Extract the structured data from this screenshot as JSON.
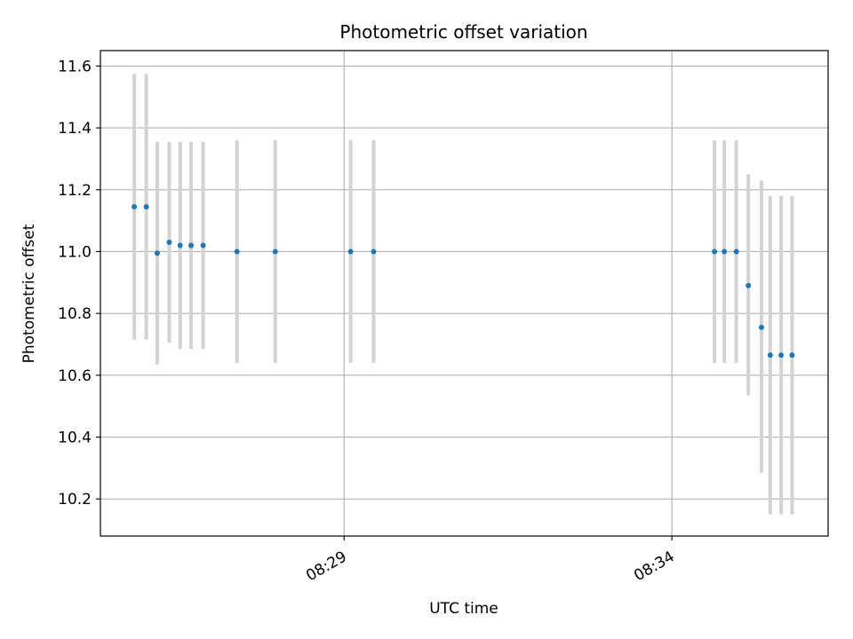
{
  "chart_data": {
    "type": "scatter",
    "title": "Photometric offset variation",
    "xlabel": "UTC time",
    "ylabel": "Photometric offset",
    "x_axis": {
      "kind": "time",
      "range": [
        "08:25:17",
        "08:36:23"
      ],
      "ticks": [
        {
          "label": "08:29",
          "time": "08:29:00"
        },
        {
          "label": "08:34",
          "time": "08:34:00"
        }
      ]
    },
    "y_axis": {
      "range": [
        10.08,
        11.65
      ],
      "ticks": [
        10.2,
        10.4,
        10.6,
        10.8,
        11.0,
        11.2,
        11.4,
        11.6
      ],
      "tick_labels": [
        "10.2",
        "10.4",
        "10.6",
        "10.8",
        "11.0",
        "11.2",
        "11.4",
        "11.6"
      ]
    },
    "grid": true,
    "point_color": "#1f77b4",
    "errorbar_color": "#d3d3d3",
    "points": [
      {
        "time": "08:25:48",
        "y": 11.145,
        "ylow": 10.715,
        "yhigh": 11.575
      },
      {
        "time": "08:25:59",
        "y": 11.145,
        "ylow": 10.715,
        "yhigh": 11.575
      },
      {
        "time": "08:26:09",
        "y": 10.995,
        "ylow": 10.635,
        "yhigh": 11.355
      },
      {
        "time": "08:26:20",
        "y": 11.03,
        "ylow": 10.705,
        "yhigh": 11.355
      },
      {
        "time": "08:26:30",
        "y": 11.02,
        "ylow": 10.685,
        "yhigh": 11.355
      },
      {
        "time": "08:26:40",
        "y": 11.02,
        "ylow": 10.685,
        "yhigh": 11.355
      },
      {
        "time": "08:26:51",
        "y": 11.02,
        "ylow": 10.685,
        "yhigh": 11.355
      },
      {
        "time": "08:27:22",
        "y": 11.0,
        "ylow": 10.64,
        "yhigh": 11.36
      },
      {
        "time": "08:27:57",
        "y": 11.0,
        "ylow": 10.64,
        "yhigh": 11.36
      },
      {
        "time": "08:29:06",
        "y": 11.0,
        "ylow": 10.64,
        "yhigh": 11.36
      },
      {
        "time": "08:29:27",
        "y": 11.0,
        "ylow": 10.64,
        "yhigh": 11.36
      },
      {
        "time": "08:34:39",
        "y": 11.0,
        "ylow": 10.64,
        "yhigh": 11.36
      },
      {
        "time": "08:34:48",
        "y": 11.0,
        "ylow": 10.64,
        "yhigh": 11.36
      },
      {
        "time": "08:34:59",
        "y": 11.0,
        "ylow": 10.64,
        "yhigh": 11.36
      },
      {
        "time": "08:35:10",
        "y": 10.89,
        "ylow": 10.535,
        "yhigh": 11.25
      },
      {
        "time": "08:35:22",
        "y": 10.755,
        "ylow": 10.285,
        "yhigh": 11.23
      },
      {
        "time": "08:35:30",
        "y": 10.665,
        "ylow": 10.15,
        "yhigh": 11.18
      },
      {
        "time": "08:35:40",
        "y": 10.665,
        "ylow": 10.15,
        "yhigh": 11.18
      },
      {
        "time": "08:35:50",
        "y": 10.665,
        "ylow": 10.15,
        "yhigh": 11.18
      }
    ]
  }
}
